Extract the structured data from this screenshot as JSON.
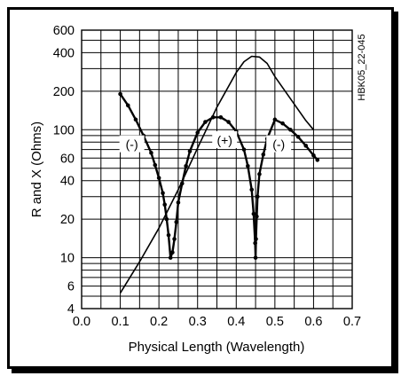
{
  "chart_data": {
    "type": "line",
    "xlabel": "Physical Length (Wavelength)",
    "ylabel": "R and X (Ohms)",
    "xlim": [
      0.0,
      0.7
    ],
    "ylim": [
      4,
      600
    ],
    "yscale": "log",
    "xticks": [
      {
        "value": 0.0,
        "label": "0.0"
      },
      {
        "value": 0.1,
        "label": "0.1"
      },
      {
        "value": 0.2,
        "label": "0.2"
      },
      {
        "value": 0.3,
        "label": "0.3"
      },
      {
        "value": 0.4,
        "label": "0.4"
      },
      {
        "value": 0.5,
        "label": "0.5"
      },
      {
        "value": 0.6,
        "label": "0.6"
      },
      {
        "value": 0.7,
        "label": "0.7"
      }
    ],
    "yticks": [
      {
        "value": 4,
        "label": "4"
      },
      {
        "value": 6,
        "label": "6"
      },
      {
        "value": 10,
        "label": "10"
      },
      {
        "value": 20,
        "label": "20"
      },
      {
        "value": 40,
        "label": "40"
      },
      {
        "value": 60,
        "label": "60"
      },
      {
        "value": 100,
        "label": "100"
      },
      {
        "value": 200,
        "label": "200"
      },
      {
        "value": 400,
        "label": "400"
      },
      {
        "value": 600,
        "label": "600"
      }
    ],
    "grid": true,
    "annotation": "HBK05_22-045",
    "region_labels": [
      {
        "text": "(-)",
        "x": 0.13,
        "y": 77
      },
      {
        "text": "(+)",
        "x": 0.37,
        "y": 83
      },
      {
        "text": "(-)",
        "x": 0.51,
        "y": 77
      }
    ],
    "series": [
      {
        "role": "resistance",
        "markers": false,
        "x": [
          0.1,
          0.15,
          0.2,
          0.25,
          0.3,
          0.35,
          0.4,
          0.42,
          0.44,
          0.46,
          0.48,
          0.5,
          0.54,
          0.58,
          0.6
        ],
        "y": [
          5.3,
          9.3,
          17,
          34,
          72,
          150,
          280,
          340,
          375,
          370,
          330,
          260,
          175,
          118,
          100
        ]
      },
      {
        "role": "reactance",
        "markers": true,
        "x": [
          0.1,
          0.12,
          0.14,
          0.16,
          0.18,
          0.19,
          0.2,
          0.21,
          0.215,
          0.22,
          0.225,
          0.23,
          0.235,
          0.24,
          0.245,
          0.25,
          0.26,
          0.27,
          0.28,
          0.3,
          0.32,
          0.34,
          0.36,
          0.38,
          0.4,
          0.42,
          0.43,
          0.44,
          0.445,
          0.449,
          0.45,
          0.451,
          0.453,
          0.455,
          0.46,
          0.47,
          0.48,
          0.5,
          0.52,
          0.54,
          0.56,
          0.58,
          0.6,
          0.61
        ],
        "y": [
          190,
          155,
          120,
          90,
          66,
          53,
          42,
          32,
          26,
          20,
          15,
          10,
          11,
          14,
          19,
          27,
          38,
          52,
          68,
          95,
          115,
          125,
          125,
          115,
          97,
          70,
          52,
          34,
          22,
          13,
          10,
          14,
          21,
          30,
          45,
          64,
          85,
          120,
          112,
          100,
          88,
          75,
          63,
          58
        ]
      }
    ]
  }
}
